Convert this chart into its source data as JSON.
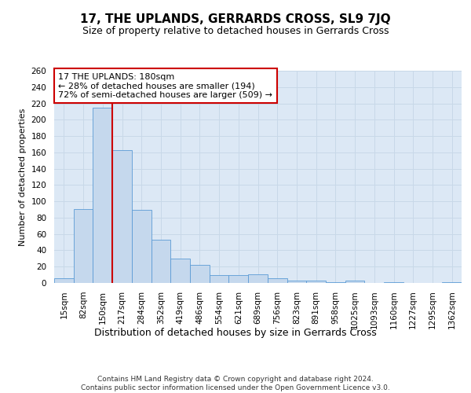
{
  "title": "17, THE UPLANDS, GERRARDS CROSS, SL9 7JQ",
  "subtitle": "Size of property relative to detached houses in Gerrards Cross",
  "xlabel": "Distribution of detached houses by size in Gerrards Cross",
  "ylabel": "Number of detached properties",
  "footer_line1": "Contains HM Land Registry data © Crown copyright and database right 2024.",
  "footer_line2": "Contains public sector information licensed under the Open Government Licence v3.0.",
  "categories": [
    "15sqm",
    "82sqm",
    "150sqm",
    "217sqm",
    "284sqm",
    "352sqm",
    "419sqm",
    "486sqm",
    "554sqm",
    "621sqm",
    "689sqm",
    "756sqm",
    "823sqm",
    "891sqm",
    "958sqm",
    "1025sqm",
    "1093sqm",
    "1160sqm",
    "1227sqm",
    "1295sqm",
    "1362sqm"
  ],
  "bar_values": [
    6,
    91,
    215,
    163,
    90,
    53,
    30,
    22,
    10,
    10,
    11,
    6,
    3,
    3,
    1,
    3,
    0,
    1,
    0,
    0,
    1
  ],
  "bar_color": "#c5d8ed",
  "bar_edge_color": "#5b9bd5",
  "red_line_x": 2,
  "annotation_text": "17 THE UPLANDS: 180sqm\n← 28% of detached houses are smaller (194)\n72% of semi-detached houses are larger (509) →",
  "annotation_box_color": "white",
  "annotation_box_edge_color": "#cc0000",
  "red_line_color": "#cc0000",
  "ylim": [
    0,
    260
  ],
  "yticks": [
    0,
    20,
    40,
    60,
    80,
    100,
    120,
    140,
    160,
    180,
    200,
    220,
    240,
    260
  ],
  "grid_color": "#c8d8e8",
  "background_color": "#dce8f5",
  "title_fontsize": 11,
  "subtitle_fontsize": 9,
  "xlabel_fontsize": 9,
  "ylabel_fontsize": 8,
  "tick_fontsize": 7.5,
  "annotation_fontsize": 8
}
